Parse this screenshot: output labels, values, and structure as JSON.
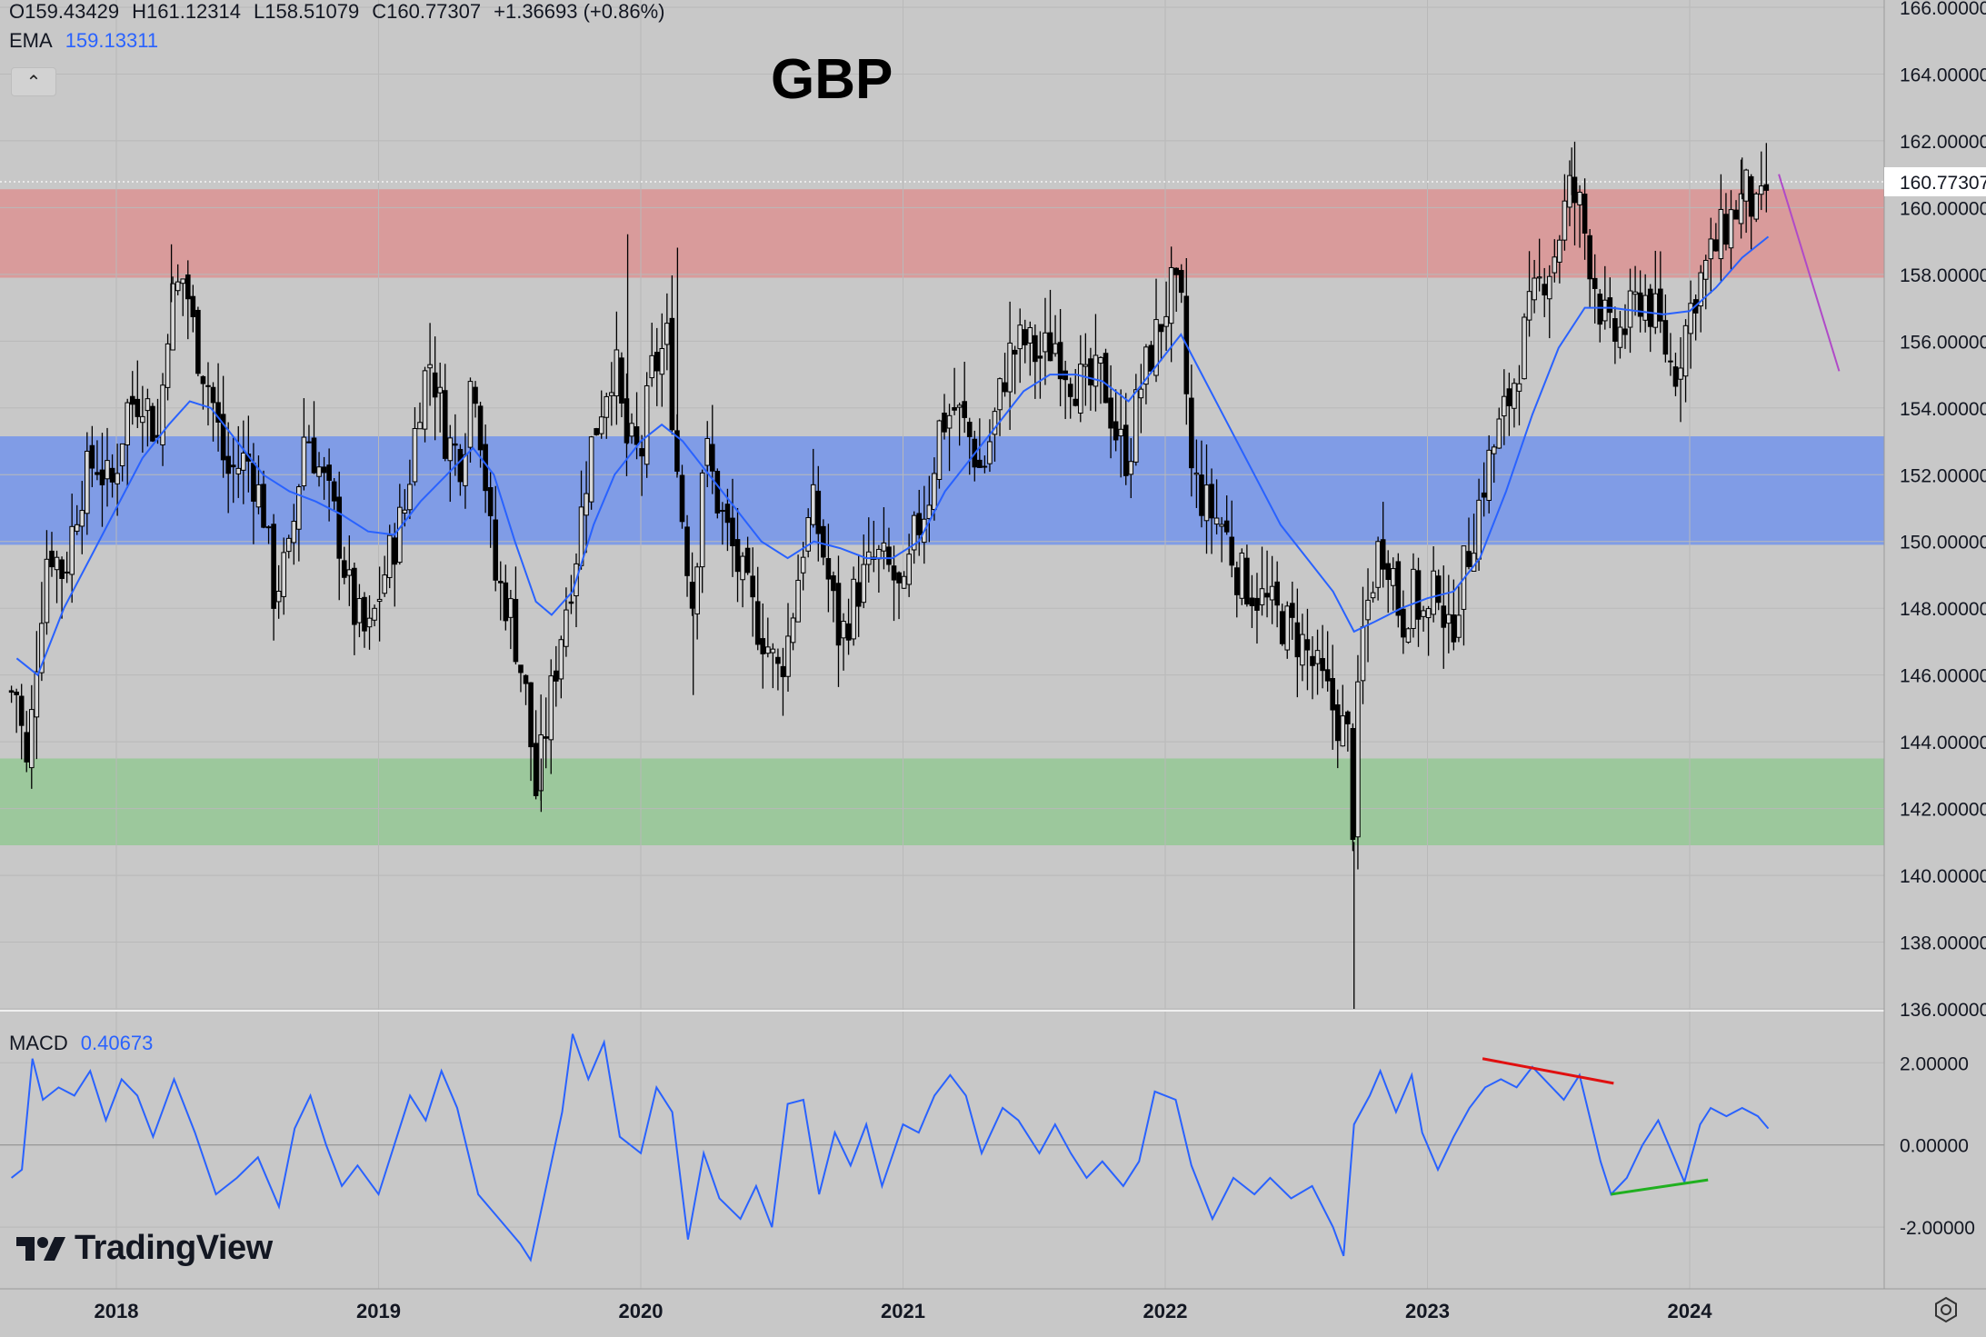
{
  "title": "GBP",
  "legend": {
    "open": "O159.43429",
    "high": "H161.12314",
    "low": "L158.51079",
    "close": "C160.77307",
    "change": "+1.36693 (+0.86%)",
    "ema_label": "EMA",
    "ema_value": "159.13311",
    "macd_label": "MACD",
    "macd_value": "0.40673"
  },
  "collapse_glyph": "⌃",
  "logo_text": "TradingView",
  "icons": {
    "collapse": "chevron-up-icon",
    "logo": "tradingview-logo-icon",
    "settings": "settings-icon"
  },
  "colors": {
    "background": "#c8c8c8",
    "grid": "#b9b9b9",
    "candle": "#000000",
    "ema": "#2962ff",
    "macd": "#2962ff",
    "resistance_zone": "rgba(232,118,118,0.55)",
    "pivot_zone": "rgba(70,120,255,0.55)",
    "support_zone": "rgba(120,200,120,0.55)",
    "bearish_divergence": "#e01010",
    "bullish_divergence": "#20b020",
    "projection": "#b04ac8"
  },
  "chart_data": [
    {
      "type": "candlestick",
      "title": "GBP",
      "ylim": [
        136,
        166
      ],
      "y_ticks": [
        "166.00000",
        "164.00000",
        "162.00000",
        "160.00000",
        "158.00000",
        "156.00000",
        "154.00000",
        "152.00000",
        "150.00000",
        "148.00000",
        "146.00000",
        "144.00000",
        "142.00000",
        "140.00000",
        "138.00000",
        "136.00000"
      ],
      "x_ticks": [
        "2018",
        "2019",
        "2020",
        "2021",
        "2022",
        "2023",
        "2024"
      ],
      "last_price_label": "160.77307",
      "last_price": 160.77307,
      "zones": [
        {
          "name": "resistance",
          "from": 157.9,
          "to": 160.55
        },
        {
          "name": "pivot",
          "from": 149.9,
          "to": 153.15
        },
        {
          "name": "support",
          "from": 140.9,
          "to": 143.5
        }
      ],
      "weekly_closes": [
        [
          2017.62,
          145.5
        ],
        [
          2017.66,
          143.0
        ],
        [
          2017.7,
          147.0
        ],
        [
          2017.74,
          150.0
        ],
        [
          2017.8,
          149.0
        ],
        [
          2017.86,
          151.5
        ],
        [
          2017.92,
          152.5
        ],
        [
          2017.98,
          151.5
        ],
        [
          2018.04,
          154.0
        ],
        [
          2018.1,
          154.5
        ],
        [
          2018.16,
          153.0
        ],
        [
          2018.2,
          157.0
        ],
        [
          2018.26,
          158.0
        ],
        [
          2018.3,
          156.0
        ],
        [
          2018.36,
          154.5
        ],
        [
          2018.42,
          152.0
        ],
        [
          2018.5,
          152.5
        ],
        [
          2018.56,
          151.0
        ],
        [
          2018.6,
          148.5
        ],
        [
          2018.66,
          149.5
        ],
        [
          2018.72,
          153.5
        ],
        [
          2018.78,
          152.0
        ],
        [
          2018.84,
          150.5
        ],
        [
          2018.9,
          148.0
        ],
        [
          2018.96,
          147.0
        ],
        [
          2019.02,
          149.0
        ],
        [
          2019.1,
          151.0
        ],
        [
          2019.16,
          154.5
        ],
        [
          2019.2,
          155.5
        ],
        [
          2019.26,
          153.0
        ],
        [
          2019.32,
          152.5
        ],
        [
          2019.36,
          155.5
        ],
        [
          2019.4,
          152.5
        ],
        [
          2019.44,
          149.0
        ],
        [
          2019.5,
          148.0
        ],
        [
          2019.56,
          145.5
        ],
        [
          2019.6,
          142.5
        ],
        [
          2019.66,
          145.5
        ],
        [
          2019.7,
          147.5
        ],
        [
          2019.76,
          150.0
        ],
        [
          2019.8,
          152.5
        ],
        [
          2019.86,
          154.5
        ],
        [
          2019.9,
          155.5
        ],
        [
          2019.94,
          153.0
        ],
        [
          2020.0,
          152.5
        ],
        [
          2020.04,
          155.0
        ],
        [
          2020.1,
          156.0
        ],
        [
          2020.14,
          152.0
        ],
        [
          2020.2,
          148.0
        ],
        [
          2020.24,
          153.0
        ],
        [
          2020.3,
          151.0
        ],
        [
          2020.36,
          149.5
        ],
        [
          2020.42,
          148.0
        ],
        [
          2020.48,
          147.0
        ],
        [
          2020.52,
          146.0
        ],
        [
          2020.56,
          147.0
        ],
        [
          2020.62,
          150.0
        ],
        [
          2020.66,
          151.0
        ],
        [
          2020.7,
          149.5
        ],
        [
          2020.76,
          147.0
        ],
        [
          2020.82,
          148.5
        ],
        [
          2020.9,
          149.5
        ],
        [
          2020.96,
          149.0
        ],
        [
          2021.0,
          148.0
        ],
        [
          2021.04,
          150.0
        ],
        [
          2021.1,
          151.5
        ],
        [
          2021.14,
          153.5
        ],
        [
          2021.2,
          154.0
        ],
        [
          2021.26,
          153.0
        ],
        [
          2021.3,
          152.0
        ],
        [
          2021.36,
          154.0
        ],
        [
          2021.4,
          155.5
        ],
        [
          2021.46,
          156.0
        ],
        [
          2021.52,
          155.5
        ],
        [
          2021.58,
          156.0
        ],
        [
          2021.64,
          155.0
        ],
        [
          2021.7,
          154.5
        ],
        [
          2021.76,
          155.0
        ],
        [
          2021.82,
          153.0
        ],
        [
          2021.86,
          152.5
        ],
        [
          2021.9,
          154.5
        ],
        [
          2021.96,
          156.0
        ],
        [
          2022.02,
          157.5
        ],
        [
          2022.06,
          157.0
        ],
        [
          2022.1,
          152.0
        ],
        [
          2022.16,
          151.0
        ],
        [
          2022.22,
          150.5
        ],
        [
          2022.28,
          149.0
        ],
        [
          2022.34,
          148.5
        ],
        [
          2022.4,
          148.0
        ],
        [
          2022.46,
          147.5
        ],
        [
          2022.52,
          147.0
        ],
        [
          2022.58,
          146.0
        ],
        [
          2022.64,
          145.0
        ],
        [
          2022.7,
          144.0
        ],
        [
          2022.72,
          141.0
        ],
        [
          2022.74,
          146.5
        ],
        [
          2022.78,
          148.5
        ],
        [
          2022.82,
          150.0
        ],
        [
          2022.86,
          149.5
        ],
        [
          2022.9,
          147.5
        ],
        [
          2022.94,
          148.5
        ],
        [
          2023.0,
          147.5
        ],
        [
          2023.04,
          149.0
        ],
        [
          2023.08,
          147.0
        ],
        [
          2023.12,
          148.5
        ],
        [
          2023.18,
          150.5
        ],
        [
          2023.22,
          152.0
        ],
        [
          2023.28,
          153.5
        ],
        [
          2023.32,
          154.5
        ],
        [
          2023.38,
          156.5
        ],
        [
          2023.44,
          158.0
        ],
        [
          2023.48,
          158.5
        ],
        [
          2023.54,
          160.5
        ],
        [
          2023.58,
          160.0
        ],
        [
          2023.62,
          158.5
        ],
        [
          2023.66,
          157.0
        ],
        [
          2023.7,
          156.0
        ],
        [
          2023.76,
          156.5
        ],
        [
          2023.82,
          157.5
        ],
        [
          2023.88,
          156.5
        ],
        [
          2023.94,
          155.0
        ],
        [
          2024.02,
          157.5
        ],
        [
          2024.08,
          158.5
        ],
        [
          2024.14,
          159.5
        ],
        [
          2024.18,
          160.0
        ],
        [
          2024.22,
          160.5
        ],
        [
          2024.26,
          159.5
        ],
        [
          2024.3,
          160.77
        ]
      ],
      "ema": [
        [
          2017.62,
          146.5
        ],
        [
          2017.7,
          146.0
        ],
        [
          2017.8,
          148.0
        ],
        [
          2017.9,
          149.5
        ],
        [
          2018.0,
          151.0
        ],
        [
          2018.1,
          152.5
        ],
        [
          2018.2,
          153.5
        ],
        [
          2018.28,
          154.2
        ],
        [
          2018.36,
          154.0
        ],
        [
          2018.46,
          153.0
        ],
        [
          2018.56,
          152.0
        ],
        [
          2018.66,
          151.5
        ],
        [
          2018.76,
          151.2
        ],
        [
          2018.86,
          150.8
        ],
        [
          2018.96,
          150.3
        ],
        [
          2019.06,
          150.2
        ],
        [
          2019.16,
          151.2
        ],
        [
          2019.26,
          152.0
        ],
        [
          2019.36,
          152.8
        ],
        [
          2019.44,
          152.0
        ],
        [
          2019.52,
          150.0
        ],
        [
          2019.6,
          148.2
        ],
        [
          2019.66,
          147.8
        ],
        [
          2019.74,
          148.5
        ],
        [
          2019.82,
          150.5
        ],
        [
          2019.9,
          152.0
        ],
        [
          2020.0,
          153.0
        ],
        [
          2020.08,
          153.5
        ],
        [
          2020.16,
          153.0
        ],
        [
          2020.26,
          152.0
        ],
        [
          2020.36,
          151.0
        ],
        [
          2020.46,
          150.0
        ],
        [
          2020.56,
          149.5
        ],
        [
          2020.66,
          150.0
        ],
        [
          2020.76,
          149.8
        ],
        [
          2020.86,
          149.5
        ],
        [
          2020.96,
          149.5
        ],
        [
          2021.06,
          150.0
        ],
        [
          2021.16,
          151.5
        ],
        [
          2021.26,
          152.5
        ],
        [
          2021.36,
          153.5
        ],
        [
          2021.46,
          154.5
        ],
        [
          2021.56,
          155.0
        ],
        [
          2021.66,
          155.0
        ],
        [
          2021.76,
          154.8
        ],
        [
          2021.86,
          154.2
        ],
        [
          2021.96,
          155.2
        ],
        [
          2022.06,
          156.2
        ],
        [
          2022.14,
          155.0
        ],
        [
          2022.24,
          153.5
        ],
        [
          2022.34,
          152.0
        ],
        [
          2022.44,
          150.5
        ],
        [
          2022.54,
          149.5
        ],
        [
          2022.64,
          148.5
        ],
        [
          2022.72,
          147.3
        ],
        [
          2022.8,
          147.6
        ],
        [
          2022.9,
          148.0
        ],
        [
          2023.0,
          148.3
        ],
        [
          2023.1,
          148.5
        ],
        [
          2023.2,
          149.5
        ],
        [
          2023.3,
          151.5
        ],
        [
          2023.4,
          153.8
        ],
        [
          2023.5,
          155.8
        ],
        [
          2023.6,
          157.0
        ],
        [
          2023.7,
          157.0
        ],
        [
          2023.8,
          156.9
        ],
        [
          2023.9,
          156.8
        ],
        [
          2024.0,
          156.9
        ],
        [
          2024.1,
          157.6
        ],
        [
          2024.2,
          158.5
        ],
        [
          2024.3,
          159.13
        ]
      ]
    },
    {
      "type": "line",
      "title": "MACD",
      "ylim": [
        -3.5,
        3.2
      ],
      "y_ticks": [
        "2.00000",
        "0.00000",
        "-2.00000"
      ],
      "values": [
        [
          2017.6,
          -0.8
        ],
        [
          2017.64,
          -0.6
        ],
        [
          2017.68,
          2.1
        ],
        [
          2017.72,
          1.1
        ],
        [
          2017.78,
          1.4
        ],
        [
          2017.84,
          1.2
        ],
        [
          2017.9,
          1.8
        ],
        [
          2017.96,
          0.6
        ],
        [
          2018.02,
          1.6
        ],
        [
          2018.08,
          1.2
        ],
        [
          2018.14,
          0.2
        ],
        [
          2018.22,
          1.6
        ],
        [
          2018.3,
          0.3
        ],
        [
          2018.38,
          -1.2
        ],
        [
          2018.46,
          -0.8
        ],
        [
          2018.54,
          -0.3
        ],
        [
          2018.62,
          -1.5
        ],
        [
          2018.68,
          0.4
        ],
        [
          2018.74,
          1.2
        ],
        [
          2018.8,
          0.0
        ],
        [
          2018.86,
          -1.0
        ],
        [
          2018.92,
          -0.5
        ],
        [
          2019.0,
          -1.2
        ],
        [
          2019.06,
          0.0
        ],
        [
          2019.12,
          1.2
        ],
        [
          2019.18,
          0.6
        ],
        [
          2019.24,
          1.8
        ],
        [
          2019.3,
          0.9
        ],
        [
          2019.38,
          -1.2
        ],
        [
          2019.46,
          -1.8
        ],
        [
          2019.54,
          -2.4
        ],
        [
          2019.58,
          -2.8
        ],
        [
          2019.64,
          -1.0
        ],
        [
          2019.7,
          0.8
        ],
        [
          2019.74,
          2.7
        ],
        [
          2019.8,
          1.6
        ],
        [
          2019.86,
          2.5
        ],
        [
          2019.92,
          0.2
        ],
        [
          2020.0,
          -0.2
        ],
        [
          2020.06,
          1.4
        ],
        [
          2020.12,
          0.8
        ],
        [
          2020.18,
          -2.3
        ],
        [
          2020.24,
          -0.2
        ],
        [
          2020.3,
          -1.3
        ],
        [
          2020.38,
          -1.8
        ],
        [
          2020.44,
          -1.0
        ],
        [
          2020.5,
          -2.0
        ],
        [
          2020.56,
          1.0
        ],
        [
          2020.62,
          1.1
        ],
        [
          2020.68,
          -1.2
        ],
        [
          2020.74,
          0.3
        ],
        [
          2020.8,
          -0.5
        ],
        [
          2020.86,
          0.5
        ],
        [
          2020.92,
          -1.0
        ],
        [
          2021.0,
          0.5
        ],
        [
          2021.06,
          0.3
        ],
        [
          2021.12,
          1.2
        ],
        [
          2021.18,
          1.7
        ],
        [
          2021.24,
          1.2
        ],
        [
          2021.3,
          -0.2
        ],
        [
          2021.38,
          0.9
        ],
        [
          2021.44,
          0.6
        ],
        [
          2021.52,
          -0.2
        ],
        [
          2021.58,
          0.5
        ],
        [
          2021.64,
          -0.2
        ],
        [
          2021.7,
          -0.8
        ],
        [
          2021.76,
          -0.4
        ],
        [
          2021.84,
          -1.0
        ],
        [
          2021.9,
          -0.4
        ],
        [
          2021.96,
          1.3
        ],
        [
          2022.04,
          1.1
        ],
        [
          2022.1,
          -0.5
        ],
        [
          2022.18,
          -1.8
        ],
        [
          2022.26,
          -0.8
        ],
        [
          2022.34,
          -1.2
        ],
        [
          2022.4,
          -0.8
        ],
        [
          2022.48,
          -1.3
        ],
        [
          2022.56,
          -1.0
        ],
        [
          2022.64,
          -2.0
        ],
        [
          2022.68,
          -2.7
        ],
        [
          2022.72,
          0.5
        ],
        [
          2022.78,
          1.2
        ],
        [
          2022.82,
          1.8
        ],
        [
          2022.88,
          0.8
        ],
        [
          2022.94,
          1.7
        ],
        [
          2022.98,
          0.3
        ],
        [
          2023.04,
          -0.6
        ],
        [
          2023.1,
          0.2
        ],
        [
          2023.16,
          0.9
        ],
        [
          2023.22,
          1.4
        ],
        [
          2023.28,
          1.6
        ],
        [
          2023.34,
          1.4
        ],
        [
          2023.4,
          1.9
        ],
        [
          2023.46,
          1.5
        ],
        [
          2023.52,
          1.1
        ],
        [
          2023.58,
          1.7
        ],
        [
          2023.66,
          -0.4
        ],
        [
          2023.7,
          -1.2
        ],
        [
          2023.76,
          -0.8
        ],
        [
          2023.82,
          0.0
        ],
        [
          2023.88,
          0.6
        ],
        [
          2023.94,
          -0.3
        ],
        [
          2023.98,
          -0.9
        ],
        [
          2024.04,
          0.5
        ],
        [
          2024.08,
          0.9
        ],
        [
          2024.14,
          0.7
        ],
        [
          2024.2,
          0.9
        ],
        [
          2024.26,
          0.7
        ],
        [
          2024.3,
          0.4
        ]
      ],
      "trendlines": [
        {
          "name": "bearish-divergence",
          "from": [
            2023.21,
            2.1
          ],
          "to": [
            2023.71,
            1.5
          ]
        },
        {
          "name": "bullish-divergence",
          "from": [
            2023.7,
            -1.2
          ],
          "to": [
            2024.07,
            -0.85
          ]
        }
      ],
      "projection_line": {
        "from": [
          2024.34,
          161.0
        ],
        "to": [
          2024.57,
          155.1
        ]
      }
    }
  ]
}
